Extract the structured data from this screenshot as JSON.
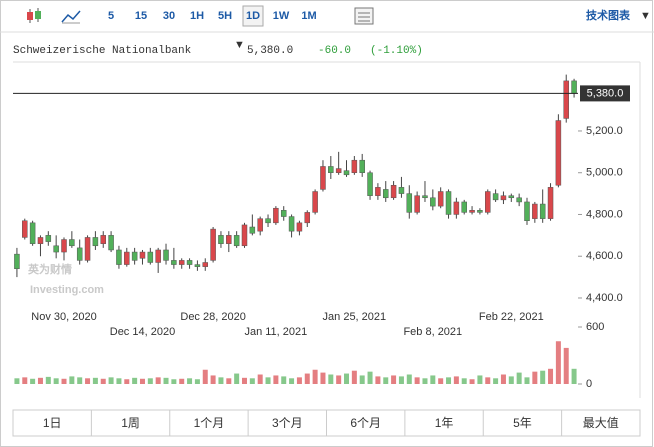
{
  "toolbar": {
    "intervals": [
      "5",
      "15",
      "30",
      "1H",
      "5H",
      "1D",
      "1W",
      "1M"
    ],
    "selected": "1D",
    "link": "技术图表"
  },
  "chart_data": {
    "type": "candlestick",
    "title": "Schweizerische Nationalbank",
    "last_price": {
      "value": 5380,
      "label": "5,380.0"
    },
    "change": {
      "value": -60,
      "label": "-60.0"
    },
    "change_percent": {
      "value": -1.1,
      "label": "(-1.10%)"
    },
    "watermark": "英为财情",
    "watermark_sub": "Investing.com",
    "up_color": "#d9474b",
    "down_color": "#52b05a",
    "categories": [
      null,
      null,
      null,
      null,
      null,
      null,
      "Nov 30, 2020",
      null,
      null,
      null,
      null,
      null,
      null,
      null,
      null,
      null,
      "Dec 14, 2020",
      null,
      null,
      null,
      null,
      null,
      null,
      null,
      null,
      "Dec 28, 2020",
      null,
      null,
      null,
      null,
      null,
      null,
      null,
      "Jan 11, 2021",
      null,
      null,
      null,
      null,
      null,
      null,
      null,
      null,
      null,
      "Jan 25, 2021",
      null,
      null,
      null,
      null,
      null,
      null,
      null,
      null,
      null,
      "Feb 8, 2021",
      null,
      null,
      null,
      null,
      null,
      null,
      null,
      null,
      null,
      "Feb 22, 2021",
      null,
      null,
      null,
      null,
      null,
      null,
      null,
      null
    ],
    "open": [
      4610,
      4690,
      4760,
      4660,
      4700,
      4650,
      4620,
      4680,
      4640,
      4580,
      4690,
      4660,
      4700,
      4630,
      4560,
      4620,
      4590,
      4620,
      4570,
      4630,
      4580,
      4560,
      4580,
      4560,
      4550,
      4580,
      4700,
      4660,
      4700,
      4650,
      4740,
      4720,
      4780,
      4760,
      4820,
      4790,
      4720,
      4760,
      4810,
      4920,
      5030,
      5000,
      5010,
      5000,
      5060,
      5000,
      4890,
      4920,
      4880,
      4930,
      4900,
      4810,
      4890,
      4880,
      4840,
      4910,
      4800,
      4860,
      4810,
      4820,
      4810,
      4900,
      4870,
      4890,
      4880,
      4860,
      4780,
      4850,
      4780,
      4940,
      5260,
      5440
    ],
    "high": [
      4640,
      4780,
      4770,
      4700,
      4720,
      4700,
      4690,
      4720,
      4680,
      4700,
      4720,
      4720,
      4720,
      4650,
      4640,
      4640,
      4630,
      4640,
      4640,
      4660,
      4640,
      4590,
      4590,
      4580,
      4590,
      4740,
      4720,
      4720,
      4720,
      4760,
      4800,
      4790,
      4800,
      4840,
      4840,
      4800,
      4770,
      4820,
      4920,
      5060,
      5080,
      5100,
      5060,
      5080,
      5090,
      5010,
      4950,
      4960,
      4960,
      4980,
      4940,
      4910,
      4960,
      4920,
      4930,
      4920,
      4880,
      4870,
      4840,
      4830,
      4920,
      4920,
      4910,
      4900,
      4900,
      4880,
      4860,
      4920,
      4950,
      5280,
      5470,
      5450
    ],
    "low": [
      4500,
      4680,
      4650,
      4600,
      4650,
      4590,
      4580,
      4640,
      4560,
      4570,
      4630,
      4640,
      4620,
      4540,
      4550,
      4560,
      4560,
      4560,
      4520,
      4560,
      4540,
      4540,
      4540,
      4530,
      4530,
      4570,
      4640,
      4620,
      4640,
      4640,
      4700,
      4700,
      4740,
      4750,
      4770,
      4690,
      4700,
      4740,
      4800,
      4910,
      4970,
      4990,
      4980,
      4990,
      4980,
      4870,
      4870,
      4860,
      4870,
      4880,
      4780,
      4800,
      4860,
      4820,
      4830,
      4780,
      4780,
      4800,
      4800,
      4800,
      4800,
      4860,
      4850,
      4860,
      4840,
      4750,
      4760,
      4760,
      4770,
      4930,
      5240,
      5360
    ],
    "close": [
      4540,
      4770,
      4660,
      4690,
      4670,
      4620,
      4680,
      4650,
      4580,
      4690,
      4650,
      4700,
      4630,
      4560,
      4620,
      4580,
      4620,
      4570,
      4630,
      4580,
      4560,
      4580,
      4560,
      4550,
      4570,
      4730,
      4660,
      4700,
      4650,
      4750,
      4710,
      4780,
      4760,
      4830,
      4790,
      4720,
      4760,
      4810,
      4910,
      5030,
      5000,
      5020,
      4990,
      5060,
      5000,
      4890,
      4930,
      4880,
      4940,
      4900,
      4810,
      4890,
      4880,
      4840,
      4910,
      4800,
      4860,
      4810,
      4820,
      4810,
      4910,
      4870,
      4890,
      4880,
      4860,
      4770,
      4850,
      4780,
      4930,
      5250,
      5440,
      5380
    ],
    "volume": [
      60,
      70,
      55,
      65,
      75,
      60,
      55,
      80,
      70,
      60,
      65,
      55,
      70,
      60,
      50,
      65,
      55,
      60,
      70,
      65,
      50,
      55,
      60,
      50,
      150,
      90,
      70,
      60,
      110,
      65,
      60,
      100,
      70,
      90,
      80,
      60,
      70,
      110,
      150,
      120,
      100,
      90,
      110,
      140,
      90,
      130,
      80,
      70,
      90,
      80,
      100,
      70,
      60,
      90,
      60,
      70,
      80,
      60,
      50,
      90,
      70,
      60,
      100,
      80,
      120,
      70,
      130,
      140,
      160,
      450,
      380,
      160
    ],
    "ylim": [
      4352,
      5516
    ],
    "yticks": [
      {
        "value": 4400,
        "label": "4,400.0"
      },
      {
        "value": 4600,
        "label": "4,600.0"
      },
      {
        "value": 4800,
        "label": "4,800.0"
      },
      {
        "value": 5000,
        "label": "5,000.0"
      },
      {
        "value": 5200,
        "label": "5,200.0"
      }
    ],
    "volume_ylim": [
      0,
      600
    ],
    "volume_ticks": [
      0,
      600
    ]
  },
  "range_buttons": [
    "1日",
    "1周",
    "1个月",
    "3个月",
    "6个月",
    "1年",
    "5年",
    "最大值"
  ]
}
